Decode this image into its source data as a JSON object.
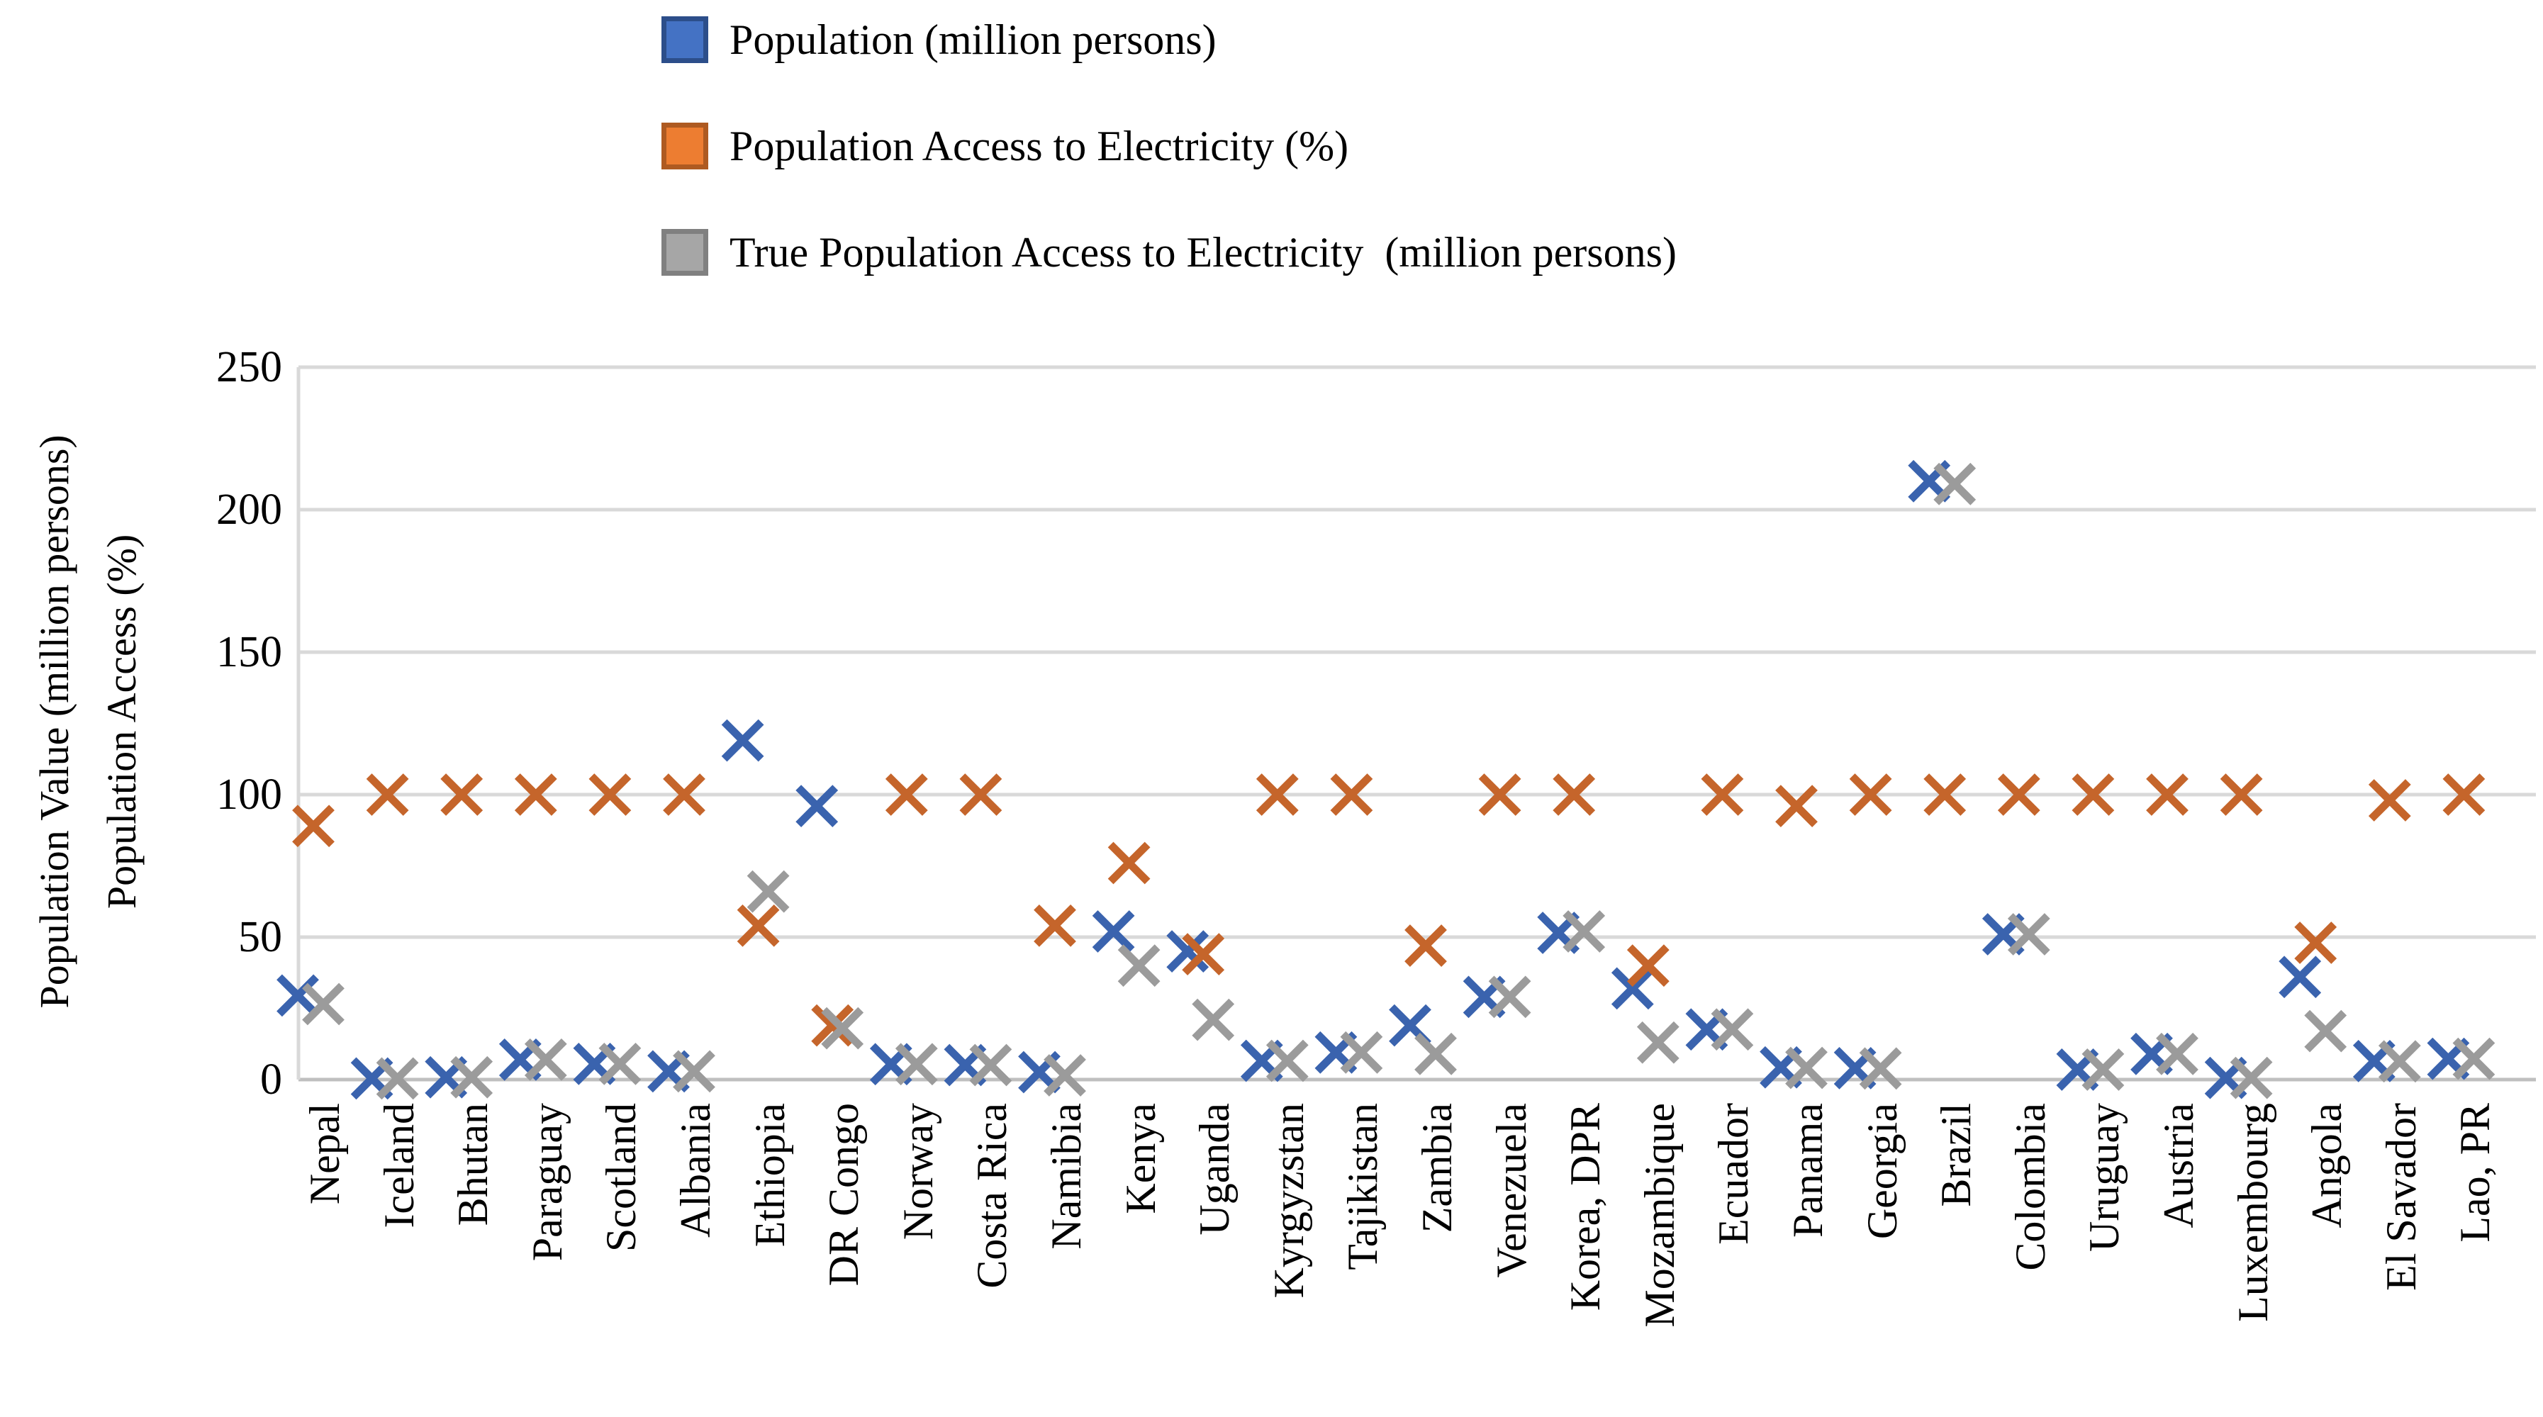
{
  "legend": [
    {
      "label": "Population (million persons)",
      "fill": "#4472C4",
      "border": "#2C4E8A"
    },
    {
      "label": "Population Access to Electricity (%)",
      "fill": "#ED7D31",
      "border": "#AE5A21"
    },
    {
      "label": "True Population Access to Electricity  (million persons)",
      "fill": "#A6A6A6",
      "border": "#808080"
    }
  ],
  "y_axis": {
    "title_outer": "Population Value (million persons)",
    "title_inner": "Population Access (%)",
    "ticks": [
      0,
      50,
      100,
      150,
      200,
      250
    ]
  },
  "colors": {
    "grid": "#D9D9D9",
    "axis": "#BFBFBF",
    "series_blue": "#3A63AE",
    "series_orange": "#C5652B",
    "series_gray": "#9B9B9B"
  },
  "chart_data": {
    "type": "scatter",
    "marker": "x",
    "grid": true,
    "legend_position": "top",
    "ylim": [
      0,
      250
    ],
    "categories": [
      "Nepal",
      "Iceland",
      "Bhutan",
      "Paraguay",
      "Scotland",
      "Albania",
      "Ethiopia",
      "DR Congo",
      "Norway",
      "Costa Rica",
      "Namibia",
      "Kenya",
      "Uganda",
      "Kyrgyzstan",
      "Tajikistan",
      "Zambia",
      "Venezuela",
      "Korea, DPR",
      "Mozambique",
      "Ecuador",
      "Panama",
      "Georgia",
      "Brazil",
      "Colombia",
      "Uruguay",
      "Austria",
      "Luxembourg",
      "Angola",
      "El Savador",
      "Lao, PR"
    ],
    "series": [
      {
        "name": "Population (million persons)",
        "color": "#3A63AE",
        "values": [
          29.5,
          0.4,
          0.8,
          7,
          5.5,
          2.9,
          119,
          96,
          5.4,
          5.1,
          2.6,
          52,
          45,
          6.6,
          9.5,
          19,
          29,
          51.5,
          32,
          17.6,
          4.3,
          4,
          210,
          51,
          3.5,
          9,
          0.6,
          36,
          6.5,
          7.3
        ]
      },
      {
        "name": "Population Access to Electricity (%)",
        "color": "#C5652B",
        "values": [
          89,
          100,
          100,
          100,
          100,
          100,
          54,
          19,
          100,
          100,
          54,
          76,
          44,
          100,
          100,
          47,
          100,
          100,
          40,
          100,
          96,
          100,
          100,
          100,
          100,
          100,
          100,
          48,
          98,
          100
        ]
      },
      {
        "name": "True Population Access to Electricity  (million persons)",
        "color": "#9B9B9B",
        "values": [
          26.5,
          0.4,
          0.8,
          7,
          5.5,
          2.9,
          66,
          18,
          5.4,
          5.1,
          1.5,
          40,
          21,
          6.6,
          9.5,
          9,
          29,
          52,
          13,
          17.6,
          4.1,
          3.9,
          209,
          51,
          3.5,
          9,
          0.6,
          17,
          6.4,
          7.3
        ]
      }
    ]
  }
}
